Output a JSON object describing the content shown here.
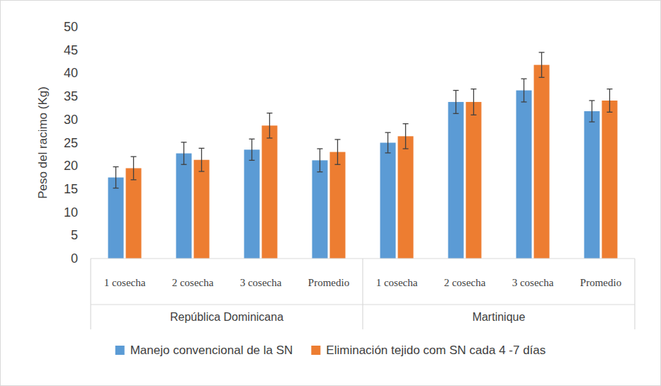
{
  "chart_data": {
    "type": "bar",
    "y_label": "Peso del racimo (Kg)",
    "categories": [
      "1 cosecha",
      "2 cosecha",
      "3 cosecha",
      "Promedio",
      "1 cosecha",
      "2 cosecha",
      "3 cosecha",
      "Promedio"
    ],
    "category_groups": [
      "República Dominicana",
      "Martinique"
    ],
    "series": [
      {
        "name": "Manejo convencional de la SN",
        "color": "#5b9bd5",
        "values": [
          17.5,
          22.7,
          23.5,
          21.2,
          25.0,
          33.8,
          36.3,
          31.8
        ],
        "errors": [
          2.3,
          2.4,
          2.3,
          2.5,
          2.2,
          2.5,
          2.5,
          2.3
        ]
      },
      {
        "name": "Eliminación tejido com SN cada  4 -7 días",
        "color": "#ed7d31",
        "values": [
          19.5,
          21.3,
          28.7,
          23.0,
          26.4,
          33.8,
          41.8,
          34.1
        ],
        "errors": [
          2.5,
          2.5,
          2.7,
          2.7,
          2.7,
          2.8,
          2.7,
          2.5
        ]
      }
    ],
    "ylim": [
      0,
      50
    ],
    "yticks": [
      0,
      5,
      10,
      15,
      20,
      25,
      30,
      35,
      40,
      45,
      50
    ],
    "grid": false,
    "legend": "bottom"
  }
}
